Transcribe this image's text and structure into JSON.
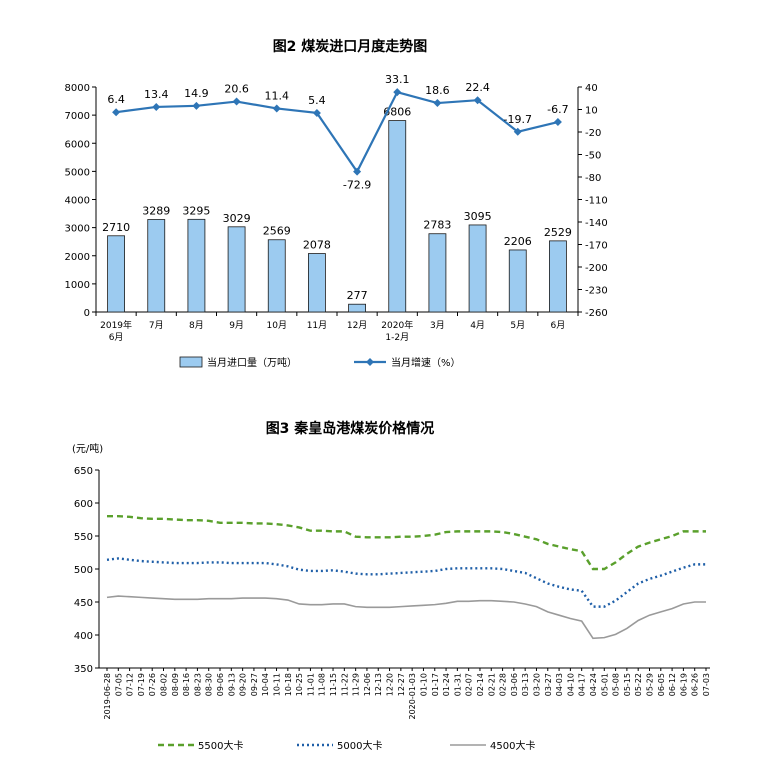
{
  "chart_data": [
    {
      "type": "bar",
      "title": "图2  煤炭进口月度走势图",
      "categories": [
        "2019年\n6月",
        "7月",
        "8月",
        "9月",
        "10月",
        "11月",
        "12月",
        "2020年\n1-2月",
        "3月",
        "4月",
        "5月",
        "6月"
      ],
      "series": [
        {
          "name": "当月进口量（万吨）",
          "type": "bar",
          "axis": "left",
          "color": "#9ccbf0",
          "values": [
            2710,
            3289,
            3295,
            3029,
            2569,
            2078,
            277,
            6806,
            2783,
            3095,
            2206,
            2529
          ]
        },
        {
          "name": "当月增速（%）",
          "type": "line",
          "axis": "right",
          "color": "#2e75b6",
          "values": [
            6.4,
            13.4,
            14.9,
            20.6,
            11.4,
            5.4,
            -72.9,
            33.1,
            18.6,
            22.4,
            -19.7,
            -6.7
          ]
        }
      ],
      "ylim_left": [
        0,
        8000
      ],
      "yticks_left": [
        0,
        1000,
        2000,
        3000,
        4000,
        5000,
        6000,
        7000,
        8000
      ],
      "ylim_right": [
        -260,
        40
      ],
      "yticks_right": [
        40,
        10,
        -20,
        -50,
        -80,
        -110,
        -140,
        -170,
        -200,
        -230,
        -260
      ],
      "legend": "bottom",
      "grid": false
    },
    {
      "type": "line",
      "title": "图3    秦皇岛港煤炭价格情况",
      "ylabel": "(元/吨)",
      "ylim": [
        350,
        650
      ],
      "yticks": [
        350,
        400,
        450,
        500,
        550,
        600,
        650
      ],
      "x": [
        "2019-06-28",
        "07-05",
        "07-12",
        "07-19",
        "07-26",
        "08-02",
        "08-09",
        "08-16",
        "08-23",
        "08-30",
        "09-06",
        "09-13",
        "09-20",
        "09-27",
        "10-04",
        "10-11",
        "10-18",
        "10-25",
        "11-01",
        "11-08",
        "11-15",
        "11-22",
        "11-29",
        "12-06",
        "12-13",
        "12-20",
        "12-27",
        "2020-01-03",
        "01-10",
        "01-17",
        "01-24",
        "01-31",
        "02-07",
        "02-14",
        "02-21",
        "02-28",
        "03-06",
        "03-13",
        "03-20",
        "03-27",
        "04-03",
        "04-10",
        "04-17",
        "04-24",
        "05-01",
        "05-08",
        "05-15",
        "05-22",
        "05-29",
        "06-05",
        "06-12",
        "06-19",
        "06-26",
        "07-03"
      ],
      "x_tick_labels": [
        "2019-06-28",
        "07-05",
        "07-12",
        "07-19",
        "07-26",
        "08-02",
        "08-09",
        "08-16",
        "08-23",
        "08-30",
        "09-06",
        "09-13",
        "09-20",
        "09-27",
        "10-04",
        "10-11",
        "10-18",
        "10-25",
        "11-01",
        "11-08",
        "11-15",
        "11-22",
        "11-29",
        "12-06",
        "12-13",
        "12-20",
        "12-27",
        "2020-01-03",
        "01-10",
        "01-17",
        "01-24",
        "01-31",
        "02-07",
        "02-14",
        "02-21",
        "02-28",
        "03-06",
        "03-13",
        "03-20",
        "03-27",
        "04-03",
        "04-10",
        "04-17",
        "04-24",
        "05-01",
        "05-08",
        "05-15",
        "05-22",
        "05-29",
        "06-05",
        "06-12",
        "06-19",
        "06-26",
        "07-03"
      ],
      "series": [
        {
          "name": "5500大卡",
          "color": "#5aa02c",
          "style": "dashed",
          "values": [
            580,
            580,
            579,
            577,
            576,
            576,
            575,
            574,
            574,
            573,
            570,
            570,
            570,
            569,
            569,
            568,
            566,
            563,
            558,
            558,
            557,
            557,
            549,
            548,
            548,
            548,
            549,
            549,
            550,
            552,
            556,
            557,
            557,
            557,
            557,
            556,
            553,
            549,
            545,
            538,
            534,
            530,
            527,
            500,
            500,
            510,
            523,
            534,
            540,
            545,
            550,
            557,
            557,
            557
          ]
        },
        {
          "name": "5000大卡",
          "color": "#1f5fa8",
          "style": "dotted",
          "values": [
            514,
            516,
            514,
            512,
            511,
            510,
            509,
            509,
            509,
            510,
            510,
            509,
            509,
            509,
            509,
            507,
            504,
            499,
            497,
            497,
            498,
            496,
            493,
            492,
            492,
            493,
            494,
            495,
            496,
            497,
            500,
            501,
            501,
            501,
            501,
            500,
            497,
            494,
            486,
            478,
            473,
            469,
            467,
            443,
            443,
            452,
            465,
            478,
            485,
            490,
            496,
            502,
            507,
            507
          ]
        },
        {
          "name": "4500大卡",
          "color": "#9a9a9a",
          "style": "solid",
          "values": [
            457,
            459,
            458,
            457,
            456,
            455,
            454,
            454,
            454,
            455,
            455,
            455,
            456,
            456,
            456,
            455,
            453,
            447,
            446,
            446,
            447,
            447,
            443,
            442,
            442,
            442,
            443,
            444,
            445,
            446,
            448,
            451,
            451,
            452,
            452,
            451,
            450,
            447,
            443,
            435,
            430,
            425,
            421,
            395,
            396,
            401,
            410,
            422,
            430,
            435,
            440,
            447,
            450,
            450
          ]
        }
      ],
      "legend": "bottom",
      "grid": false
    }
  ]
}
